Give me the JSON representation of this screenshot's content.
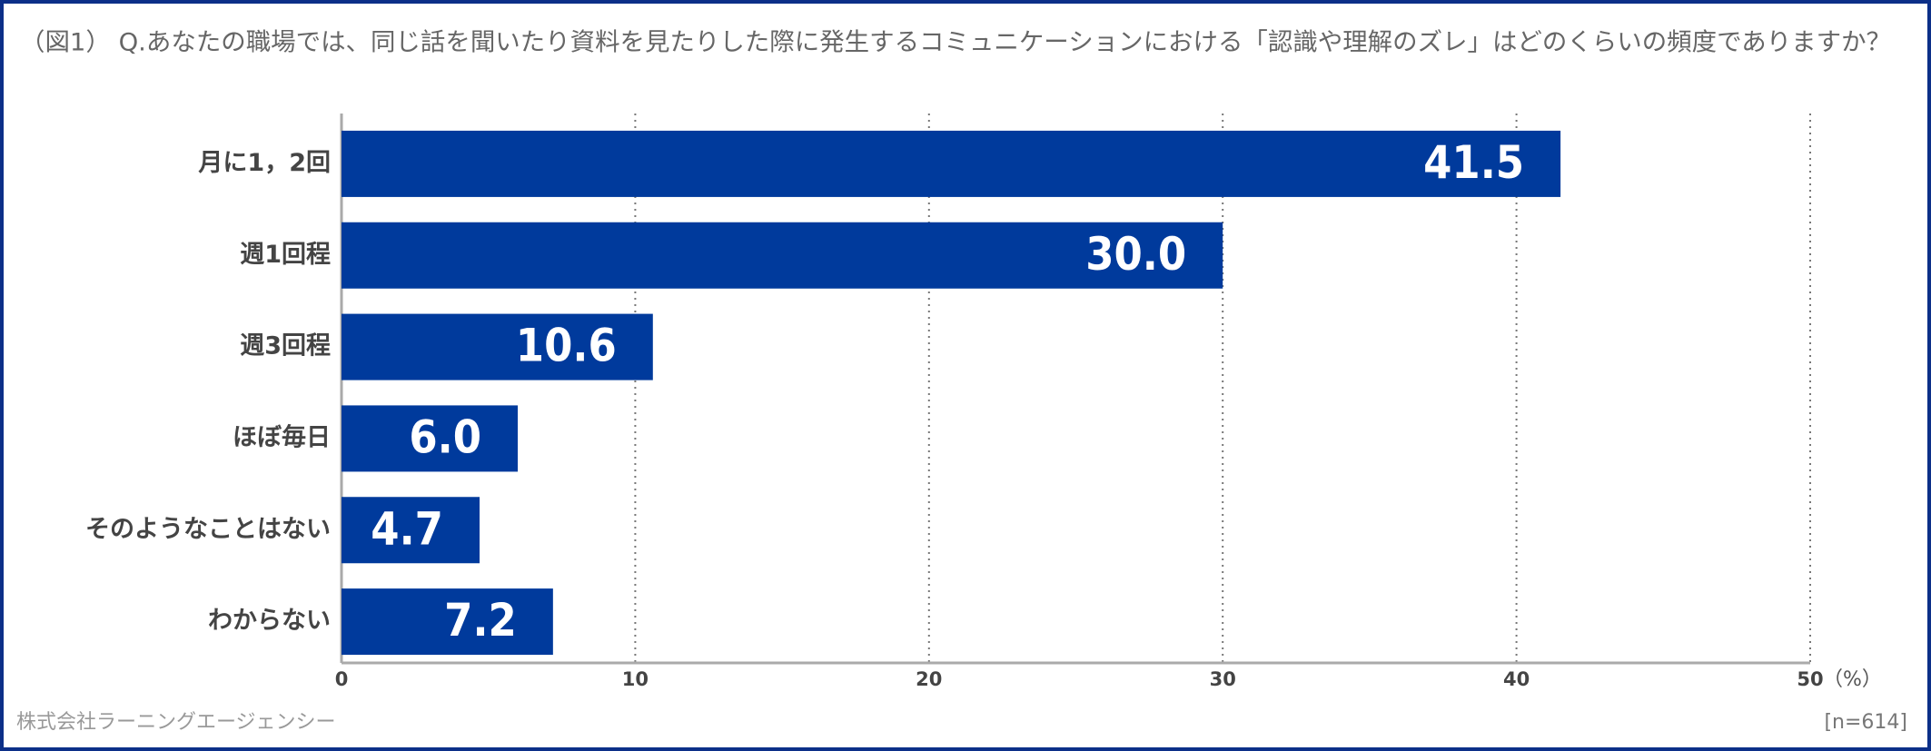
{
  "chart_data": {
    "type": "barh",
    "title": "（図1） Q.あなたの職場では、同じ話を聞いたり資料を見たりした際に発生するコミュニケーションにおける「認識や理解のズレ」はどのくらいの頻度でありますか？",
    "categories": [
      "月に1，2回",
      "週1回程",
      "週3回程",
      "ほぼ毎日",
      "そのようなことはない",
      "わからない"
    ],
    "values": [
      41.5,
      30,
      10.6,
      6,
      4.7,
      7.2
    ],
    "value_labels": [
      "41.5",
      "30.0",
      "10.6",
      "6.0",
      "4.7",
      "7.2"
    ],
    "color": "#003a9c",
    "xlim": [
      0,
      50
    ],
    "xticks": [
      0,
      10,
      20,
      30,
      40,
      50
    ],
    "grid": true,
    "unit": "（%）",
    "source": "株式会社ラーニングエージェンシー",
    "note": "[n=614]"
  }
}
